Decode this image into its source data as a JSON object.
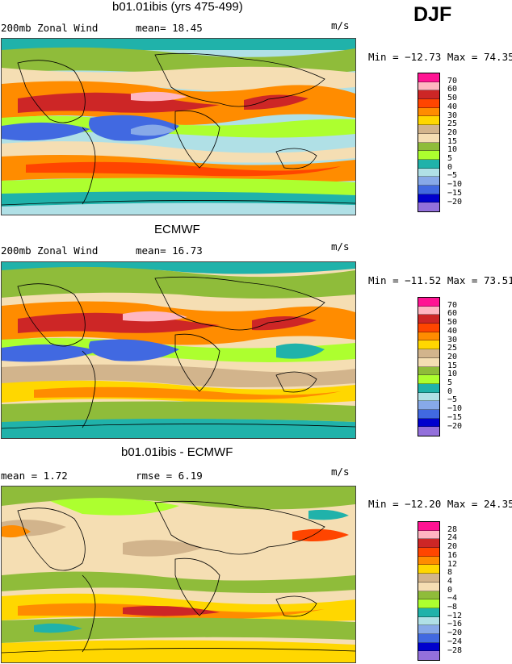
{
  "season": "DJF",
  "panels": [
    {
      "title": "b01.01ibis (yrs 475-499)",
      "left_text": "200mb Zonal Wind",
      "stat1": "mean=  18.45",
      "stat2": "",
      "units": "m/s",
      "minmax": "Min = −12.73 Max =  74.35",
      "levels": [
        "70",
        "60",
        "50",
        "40",
        "30",
        "25",
        "20",
        "15",
        "10",
        "5",
        "0",
        "−5",
        "−10",
        "−15",
        "−20"
      ]
    },
    {
      "title": "ECMWF",
      "left_text": "200mb Zonal Wind",
      "stat1": "mean=  16.73",
      "stat2": "",
      "units": "m/s",
      "minmax": "Min = −11.52 Max =  73.51",
      "levels": [
        "70",
        "60",
        "50",
        "40",
        "30",
        "25",
        "20",
        "15",
        "10",
        "5",
        "0",
        "−5",
        "−10",
        "−15",
        "−20"
      ]
    },
    {
      "title": "b01.01ibis - ECMWF",
      "left_text": "mean =   1.72",
      "stat1": "rmse =   6.19",
      "stat2": "",
      "units": "m/s",
      "minmax": "Min = −12.20 Max =  24.35",
      "levels": [
        "28",
        "24",
        "20",
        "16",
        "12",
        "8",
        "4",
        "0",
        "−4",
        "−8",
        "−12",
        "−16",
        "−20",
        "−24",
        "−28"
      ]
    }
  ],
  "colors": {
    "palette": [
      "#ff1493",
      "#ffb6c1",
      "#cd2626",
      "#ff4500",
      "#ff8c00",
      "#ffd700",
      "#fff8dc",
      "#d2b48c",
      "#f5deb3",
      "#9acd32",
      "#7cfc00",
      "#20b2aa",
      "#add8e6",
      "#6495ed",
      "#4169e1",
      "#0000cd",
      "#9370db"
    ],
    "legend_main": [
      "#ff1493",
      "#ffb6c1",
      "#cd2626",
      "#ff4500",
      "#ff8c00",
      "#ffd700",
      "#d2b48c",
      "#f5deb3",
      "#8fbc3a",
      "#adff2f",
      "#20b2aa",
      "#b0e0e6",
      "#87a9e8",
      "#4169e1",
      "#0000cd",
      "#9370db"
    ],
    "legend_diff": [
      "#ff1493",
      "#ffb6c1",
      "#cd2626",
      "#ff4500",
      "#ff8c00",
      "#ffd700",
      "#fff59a",
      "#f5deb3",
      "#d2b48c",
      "#8fbc3a",
      "#adff2f",
      "#20b2aa",
      "#b0e0e6",
      "#87a9e8",
      "#4169e1",
      "#0000cd",
      "#9370db"
    ]
  }
}
